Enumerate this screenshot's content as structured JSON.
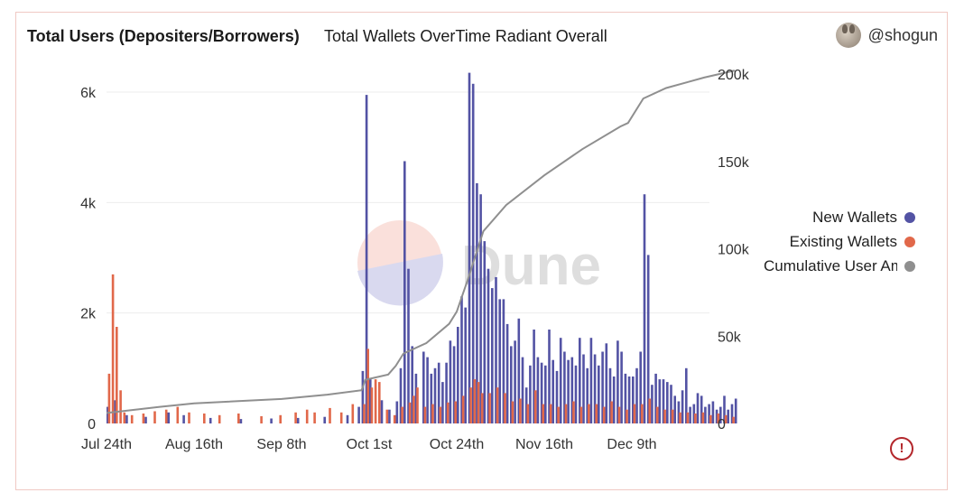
{
  "header": {
    "title": "Total Users (Depositers/Borrowers)",
    "subtitle": "Total Wallets OverTime Radiant Overall",
    "username": "@shogun"
  },
  "watermark": "Dune",
  "alert_icon": "alert-circle-icon",
  "chart_data": {
    "type": "bar",
    "title": "Total Wallets OverTime Radiant Overall",
    "x_tick_labels": [
      "Jul 24th",
      "Aug 16th",
      "Sep 8th",
      "Oct 1st",
      "Oct 24th",
      "Nov 16th",
      "Dec 9th"
    ],
    "y_left": {
      "ticks": [
        "0",
        "2k",
        "4k",
        "6k"
      ],
      "range": [
        0,
        6000
      ]
    },
    "y_right": {
      "ticks": [
        "0",
        "50k",
        "100k",
        "150k",
        "200k"
      ],
      "range": [
        0,
        200000
      ]
    },
    "grid": true,
    "legend_position": "right",
    "colors": {
      "new": "#5353a4",
      "existing": "#e1684a",
      "cumulative": "#8f8f8f"
    },
    "series": [
      {
        "name": "New Wallets",
        "type": "bar",
        "axis": "left",
        "points": [
          [
            "2022-07-24",
            300
          ],
          [
            "2022-07-26",
            420
          ],
          [
            "2022-07-29",
            150
          ],
          [
            "2022-08-03",
            120
          ],
          [
            "2022-08-09",
            200
          ],
          [
            "2022-08-13",
            150
          ],
          [
            "2022-08-20",
            100
          ],
          [
            "2022-08-28",
            80
          ],
          [
            "2022-09-05",
            90
          ],
          [
            "2022-09-12",
            100
          ],
          [
            "2022-09-19",
            120
          ],
          [
            "2022-09-25",
            150
          ],
          [
            "2022-09-28",
            300
          ],
          [
            "2022-09-29",
            950
          ],
          [
            "2022-09-30",
            5950
          ],
          [
            "2022-10-01",
            800
          ],
          [
            "2022-10-04",
            420
          ],
          [
            "2022-10-06",
            250
          ],
          [
            "2022-10-08",
            400
          ],
          [
            "2022-10-09",
            1000
          ],
          [
            "2022-10-10",
            4750
          ],
          [
            "2022-10-11",
            2800
          ],
          [
            "2022-10-12",
            1400
          ],
          [
            "2022-10-13",
            900
          ],
          [
            "2022-10-15",
            1300
          ],
          [
            "2022-10-16",
            1200
          ],
          [
            "2022-10-17",
            900
          ],
          [
            "2022-10-18",
            1000
          ],
          [
            "2022-10-19",
            1100
          ],
          [
            "2022-10-20",
            750
          ],
          [
            "2022-10-21",
            1100
          ],
          [
            "2022-10-22",
            1500
          ],
          [
            "2022-10-23",
            1400
          ],
          [
            "2022-10-24",
            1750
          ],
          [
            "2022-10-25",
            2300
          ],
          [
            "2022-10-26",
            2100
          ],
          [
            "2022-10-27",
            6350
          ],
          [
            "2022-10-28",
            6150
          ],
          [
            "2022-10-29",
            4350
          ],
          [
            "2022-10-30",
            4150
          ],
          [
            "2022-10-31",
            3300
          ],
          [
            "2022-11-01",
            2800
          ],
          [
            "2022-11-02",
            2450
          ],
          [
            "2022-11-03",
            2650
          ],
          [
            "2022-11-04",
            2250
          ],
          [
            "2022-11-05",
            2250
          ],
          [
            "2022-11-06",
            1800
          ],
          [
            "2022-11-07",
            1400
          ],
          [
            "2022-11-08",
            1500
          ],
          [
            "2022-11-09",
            1900
          ],
          [
            "2022-11-10",
            1200
          ],
          [
            "2022-11-11",
            650
          ],
          [
            "2022-11-12",
            1050
          ],
          [
            "2022-11-13",
            1700
          ],
          [
            "2022-11-14",
            1200
          ],
          [
            "2022-11-15",
            1100
          ],
          [
            "2022-11-16",
            1050
          ],
          [
            "2022-11-17",
            1700
          ],
          [
            "2022-11-18",
            1150
          ],
          [
            "2022-11-19",
            950
          ],
          [
            "2022-11-20",
            1550
          ],
          [
            "2022-11-21",
            1300
          ],
          [
            "2022-11-22",
            1150
          ],
          [
            "2022-11-23",
            1200
          ],
          [
            "2022-11-24",
            1050
          ],
          [
            "2022-11-25",
            1550
          ],
          [
            "2022-11-26",
            1250
          ],
          [
            "2022-11-27",
            1000
          ],
          [
            "2022-11-28",
            1550
          ],
          [
            "2022-11-29",
            1250
          ],
          [
            "2022-11-30",
            1050
          ],
          [
            "2022-12-01",
            1300
          ],
          [
            "2022-12-02",
            1450
          ],
          [
            "2022-12-03",
            1000
          ],
          [
            "2022-12-04",
            850
          ],
          [
            "2022-12-05",
            1500
          ],
          [
            "2022-12-06",
            1300
          ],
          [
            "2022-12-07",
            900
          ],
          [
            "2022-12-08",
            850
          ],
          [
            "2022-12-09",
            850
          ],
          [
            "2022-12-10",
            1000
          ],
          [
            "2022-12-11",
            1300
          ],
          [
            "2022-12-12",
            4150
          ],
          [
            "2022-12-13",
            3050
          ],
          [
            "2022-12-14",
            700
          ],
          [
            "2022-12-15",
            900
          ],
          [
            "2022-12-16",
            800
          ],
          [
            "2022-12-17",
            800
          ],
          [
            "2022-12-18",
            750
          ],
          [
            "2022-12-19",
            700
          ],
          [
            "2022-12-20",
            500
          ],
          [
            "2022-12-21",
            400
          ],
          [
            "2022-12-22",
            600
          ],
          [
            "2022-12-23",
            1000
          ],
          [
            "2022-12-24",
            300
          ],
          [
            "2022-12-25",
            350
          ],
          [
            "2022-12-26",
            550
          ],
          [
            "2022-12-27",
            500
          ],
          [
            "2022-12-28",
            300
          ],
          [
            "2022-12-29",
            350
          ],
          [
            "2022-12-30",
            400
          ],
          [
            "2022-12-31",
            250
          ],
          [
            "2023-01-01",
            300
          ],
          [
            "2023-01-02",
            500
          ],
          [
            "2023-01-03",
            250
          ],
          [
            "2023-01-04",
            350
          ],
          [
            "2023-01-05",
            450
          ]
        ]
      },
      {
        "name": "Existing Wallets",
        "type": "bar",
        "axis": "left",
        "points": [
          [
            "2022-07-24",
            900
          ],
          [
            "2022-07-25",
            2700
          ],
          [
            "2022-07-26",
            1750
          ],
          [
            "2022-07-27",
            600
          ],
          [
            "2022-07-28",
            200
          ],
          [
            "2022-07-30",
            150
          ],
          [
            "2022-08-02",
            180
          ],
          [
            "2022-08-05",
            220
          ],
          [
            "2022-08-08",
            250
          ],
          [
            "2022-08-11",
            300
          ],
          [
            "2022-08-14",
            200
          ],
          [
            "2022-08-18",
            180
          ],
          [
            "2022-08-22",
            150
          ],
          [
            "2022-08-27",
            180
          ],
          [
            "2022-09-02",
            130
          ],
          [
            "2022-09-07",
            150
          ],
          [
            "2022-09-11",
            200
          ],
          [
            "2022-09-14",
            250
          ],
          [
            "2022-09-16",
            200
          ],
          [
            "2022-09-20",
            280
          ],
          [
            "2022-09-23",
            200
          ],
          [
            "2022-09-26",
            350
          ],
          [
            "2022-09-29",
            350
          ],
          [
            "2022-09-30",
            1350
          ],
          [
            "2022-10-01",
            650
          ],
          [
            "2022-10-02",
            800
          ],
          [
            "2022-10-03",
            750
          ],
          [
            "2022-10-05",
            250
          ],
          [
            "2022-10-07",
            150
          ],
          [
            "2022-10-09",
            300
          ],
          [
            "2022-10-11",
            380
          ],
          [
            "2022-10-12",
            500
          ],
          [
            "2022-10-13",
            650
          ],
          [
            "2022-10-15",
            300
          ],
          [
            "2022-10-17",
            350
          ],
          [
            "2022-10-19",
            300
          ],
          [
            "2022-10-21",
            380
          ],
          [
            "2022-10-23",
            400
          ],
          [
            "2022-10-25",
            500
          ],
          [
            "2022-10-27",
            650
          ],
          [
            "2022-10-28",
            800
          ],
          [
            "2022-10-29",
            750
          ],
          [
            "2022-10-30",
            550
          ],
          [
            "2022-11-01",
            550
          ],
          [
            "2022-11-03",
            650
          ],
          [
            "2022-11-05",
            550
          ],
          [
            "2022-11-07",
            400
          ],
          [
            "2022-11-09",
            450
          ],
          [
            "2022-11-11",
            350
          ],
          [
            "2022-11-13",
            600
          ],
          [
            "2022-11-15",
            350
          ],
          [
            "2022-11-17",
            350
          ],
          [
            "2022-11-19",
            300
          ],
          [
            "2022-11-21",
            350
          ],
          [
            "2022-11-23",
            400
          ],
          [
            "2022-11-25",
            300
          ],
          [
            "2022-11-27",
            350
          ],
          [
            "2022-11-29",
            350
          ],
          [
            "2022-12-01",
            300
          ],
          [
            "2022-12-03",
            400
          ],
          [
            "2022-12-05",
            300
          ],
          [
            "2022-12-07",
            250
          ],
          [
            "2022-12-09",
            350
          ],
          [
            "2022-12-11",
            350
          ],
          [
            "2022-12-13",
            450
          ],
          [
            "2022-12-15",
            300
          ],
          [
            "2022-12-17",
            250
          ],
          [
            "2022-12-19",
            250
          ],
          [
            "2022-12-21",
            200
          ],
          [
            "2022-12-23",
            200
          ],
          [
            "2022-12-25",
            180
          ],
          [
            "2022-12-27",
            200
          ],
          [
            "2022-12-29",
            150
          ],
          [
            "2022-12-31",
            180
          ],
          [
            "2023-01-02",
            150
          ],
          [
            "2023-01-04",
            120
          ]
        ]
      },
      {
        "name": "Cumulative User Amount",
        "type": "line",
        "axis": "right",
        "points": [
          [
            "2022-07-24",
            6000
          ],
          [
            "2022-08-07",
            9500
          ],
          [
            "2022-08-16",
            11500
          ],
          [
            "2022-09-08",
            14000
          ],
          [
            "2022-09-20",
            16500
          ],
          [
            "2022-09-29",
            19000
          ],
          [
            "2022-09-30",
            25000
          ],
          [
            "2022-10-06",
            28000
          ],
          [
            "2022-10-08",
            33000
          ],
          [
            "2022-10-10",
            40000
          ],
          [
            "2022-10-16",
            46000
          ],
          [
            "2022-10-22",
            57000
          ],
          [
            "2022-10-24",
            64000
          ],
          [
            "2022-10-27",
            83000
          ],
          [
            "2022-10-31",
            110000
          ],
          [
            "2022-11-06",
            125000
          ],
          [
            "2022-11-16",
            142000
          ],
          [
            "2022-11-26",
            157000
          ],
          [
            "2022-12-06",
            170000
          ],
          [
            "2022-12-08",
            172000
          ],
          [
            "2022-12-12",
            186000
          ],
          [
            "2022-12-18",
            192000
          ],
          [
            "2022-12-28",
            198000
          ],
          [
            "2023-01-05",
            202000
          ]
        ]
      }
    ]
  }
}
